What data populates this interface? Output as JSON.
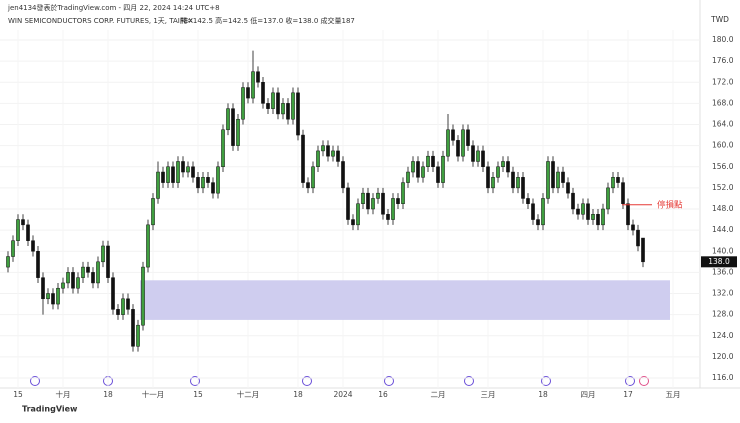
{
  "header": "jen4134發表於TradingView.com - 四月 22, 2024 14:24 UTC+8",
  "chart_data": {
    "type": "candlestick",
    "title": "WIN SEMICONDUCTORS CORP. FUTURES, 1天, TAIFEX",
    "ohlc_text": "開=142.5 高=142.5 低=137.0 收=138.0 成交量187",
    "y_axis_label": "TWD",
    "up_color": "#3f9f3f",
    "down_color": "#111111",
    "ohlc": [
      [
        137,
        140,
        136,
        139
      ],
      [
        139,
        143,
        138,
        142
      ],
      [
        142,
        147,
        141,
        146
      ],
      [
        146,
        147,
        144,
        145
      ],
      [
        145,
        146,
        141,
        142
      ],
      [
        142,
        143,
        139,
        140
      ],
      [
        140,
        141,
        134,
        135
      ],
      [
        135,
        136,
        128,
        131
      ],
      [
        131,
        133,
        130,
        132
      ],
      [
        132,
        133,
        129,
        130
      ],
      [
        130,
        134,
        129,
        133
      ],
      [
        133,
        135,
        132,
        134
      ],
      [
        134,
        137,
        133,
        136
      ],
      [
        136,
        137,
        132,
        133
      ],
      [
        133,
        136,
        132,
        135
      ],
      [
        135,
        138,
        134,
        137
      ],
      [
        137,
        138,
        135,
        136
      ],
      [
        136,
        137,
        133,
        134
      ],
      [
        134,
        139,
        133,
        138
      ],
      [
        138,
        142,
        137,
        141
      ],
      [
        141,
        142,
        134,
        135
      ],
      [
        135,
        136,
        128,
        129
      ],
      [
        129,
        130,
        127,
        128
      ],
      [
        128,
        132,
        127,
        131
      ],
      [
        131,
        132,
        128,
        129
      ],
      [
        129,
        130,
        121,
        122
      ],
      [
        122,
        127,
        121,
        126
      ],
      [
        126,
        138,
        125,
        137
      ],
      [
        137,
        146,
        136,
        145
      ],
      [
        145,
        151,
        144,
        150
      ],
      [
        150,
        157,
        149,
        155
      ],
      [
        155,
        156,
        152,
        153
      ],
      [
        153,
        157,
        152,
        156
      ],
      [
        156,
        157,
        152,
        153
      ],
      [
        153,
        158,
        152,
        157
      ],
      [
        157,
        158,
        154,
        155
      ],
      [
        155,
        157,
        154,
        156
      ],
      [
        156,
        157,
        153,
        154
      ],
      [
        154,
        155,
        151,
        152
      ],
      [
        152,
        155,
        151,
        154
      ],
      [
        154,
        155,
        152,
        153
      ],
      [
        153,
        154,
        150,
        151
      ],
      [
        151,
        157,
        150,
        156
      ],
      [
        156,
        164,
        155,
        163
      ],
      [
        163,
        168,
        162,
        167
      ],
      [
        167,
        168,
        159,
        160
      ],
      [
        160,
        166,
        159,
        165
      ],
      [
        165,
        172,
        164,
        171
      ],
      [
        171,
        172,
        168,
        169
      ],
      [
        169,
        178,
        168,
        174
      ],
      [
        174,
        175,
        171,
        172
      ],
      [
        172,
        173,
        167,
        168
      ],
      [
        168,
        169,
        166,
        167
      ],
      [
        167,
        171,
        166,
        170
      ],
      [
        170,
        171,
        165,
        166
      ],
      [
        166,
        169,
        165,
        168
      ],
      [
        168,
        169,
        164,
        165
      ],
      [
        165,
        171,
        164,
        170
      ],
      [
        170,
        171,
        161,
        162
      ],
      [
        162,
        163,
        152,
        153
      ],
      [
        153,
        154,
        151,
        152
      ],
      [
        152,
        157,
        151,
        156
      ],
      [
        156,
        160,
        155,
        159
      ],
      [
        159,
        161,
        158,
        160
      ],
      [
        160,
        161,
        157,
        158
      ],
      [
        158,
        160,
        157,
        159
      ],
      [
        159,
        160,
        156,
        157
      ],
      [
        157,
        158,
        151,
        152
      ],
      [
        152,
        153,
        145,
        146
      ],
      [
        146,
        147,
        144,
        145
      ],
      [
        145,
        150,
        144,
        149
      ],
      [
        149,
        152,
        148,
        151
      ],
      [
        151,
        152,
        147,
        148
      ],
      [
        148,
        151,
        147,
        150
      ],
      [
        150,
        152,
        149,
        151
      ],
      [
        151,
        152,
        146,
        147
      ],
      [
        147,
        148,
        145,
        146
      ],
      [
        146,
        151,
        145,
        150
      ],
      [
        150,
        151,
        148,
        149
      ],
      [
        149,
        154,
        148,
        153
      ],
      [
        153,
        156,
        152,
        155
      ],
      [
        155,
        158,
        154,
        157
      ],
      [
        157,
        158,
        153,
        154
      ],
      [
        154,
        157,
        153,
        156
      ],
      [
        156,
        159,
        155,
        158
      ],
      [
        158,
        159,
        155,
        156
      ],
      [
        156,
        157,
        152,
        153
      ],
      [
        153,
        159,
        152,
        158
      ],
      [
        158,
        166,
        157,
        163
      ],
      [
        163,
        164,
        160,
        161
      ],
      [
        161,
        162,
        157,
        158
      ],
      [
        158,
        164,
        157,
        163
      ],
      [
        163,
        164,
        159,
        160
      ],
      [
        160,
        161,
        156,
        157
      ],
      [
        157,
        160,
        156,
        159
      ],
      [
        159,
        160,
        155,
        156
      ],
      [
        156,
        157,
        151,
        152
      ],
      [
        152,
        155,
        151,
        154
      ],
      [
        154,
        157,
        153,
        156
      ],
      [
        156,
        158,
        155,
        157
      ],
      [
        157,
        158,
        154,
        155
      ],
      [
        155,
        156,
        151,
        152
      ],
      [
        152,
        155,
        151,
        154
      ],
      [
        154,
        155,
        149,
        150
      ],
      [
        150,
        151,
        148,
        149
      ],
      [
        149,
        150,
        145,
        146
      ],
      [
        146,
        147,
        144,
        145
      ],
      [
        145,
        151,
        144,
        150
      ],
      [
        150,
        158,
        149,
        157
      ],
      [
        157,
        158,
        151,
        152
      ],
      [
        152,
        156,
        151,
        155
      ],
      [
        155,
        156,
        152,
        153
      ],
      [
        153,
        154,
        150,
        151
      ],
      [
        151,
        152,
        147,
        148
      ],
      [
        148,
        149,
        146,
        147
      ],
      [
        147,
        150,
        146,
        149
      ],
      [
        149,
        150,
        145,
        146
      ],
      [
        146,
        148,
        145,
        147
      ],
      [
        147,
        148,
        144,
        145
      ],
      [
        145,
        149,
        144,
        148
      ],
      [
        148,
        153,
        147,
        152
      ],
      [
        152,
        155,
        151,
        154
      ],
      [
        154,
        155,
        152,
        153
      ],
      [
        153,
        154,
        148,
        149
      ],
      [
        149,
        150,
        144,
        145
      ],
      [
        145,
        146,
        143,
        144
      ],
      [
        144,
        145,
        140,
        141
      ],
      [
        142.5,
        142.5,
        137,
        138
      ]
    ],
    "xlim": [
      -1.6,
      138.4
    ],
    "xticks": [
      {
        "value": 2,
        "label": "15"
      },
      {
        "value": 11,
        "label": "十月"
      },
      {
        "value": 20,
        "label": "18"
      },
      {
        "value": 29,
        "label": "十一月"
      },
      {
        "value": 38,
        "label": "15"
      },
      {
        "value": 48,
        "label": "十二月"
      },
      {
        "value": 58,
        "label": "18"
      },
      {
        "value": 67,
        "label": "2024"
      },
      {
        "value": 75,
        "label": "16"
      },
      {
        "value": 86,
        "label": "二月"
      },
      {
        "value": 96,
        "label": "三月"
      },
      {
        "value": 107,
        "label": "18"
      },
      {
        "value": 116,
        "label": "四月"
      },
      {
        "value": 124,
        "label": "17"
      },
      {
        "value": 133,
        "label": "五月"
      }
    ],
    "ylim": [
      116,
      180
    ],
    "yticks": [
      {
        "value": 116,
        "label": "116.0"
      },
      {
        "value": 120,
        "label": "120.0"
      },
      {
        "value": 124,
        "label": "124.0"
      },
      {
        "value": 128,
        "label": "128.0"
      },
      {
        "value": 132,
        "label": "132.0"
      },
      {
        "value": 136,
        "label": "136.0"
      },
      {
        "value": 140,
        "label": "140.0"
      },
      {
        "value": 144,
        "label": "144.0"
      },
      {
        "value": 148,
        "label": "148.0"
      },
      {
        "value": 152,
        "label": "152.0"
      },
      {
        "value": 156,
        "label": "156.0"
      },
      {
        "value": 160,
        "label": "160.0"
      },
      {
        "value": 164,
        "label": "164.0"
      },
      {
        "value": 168,
        "label": "168.0"
      },
      {
        "value": 172,
        "label": "172.0"
      },
      {
        "value": 176,
        "label": "176.0"
      },
      {
        "value": 180,
        "label": "180.0"
      }
    ],
    "grid": true,
    "last_price": {
      "value": 138,
      "label": "138.0"
    },
    "zone": {
      "x": [
        26.4,
        132.4
      ],
      "y": [
        127,
        134.5
      ],
      "color": "#cfcdef"
    },
    "stop_loss": {
      "label": "停損點",
      "value": 148.8,
      "x": [
        122.8,
        128.8
      ],
      "color": "#e53935"
    },
    "footer": "TradingView"
  }
}
